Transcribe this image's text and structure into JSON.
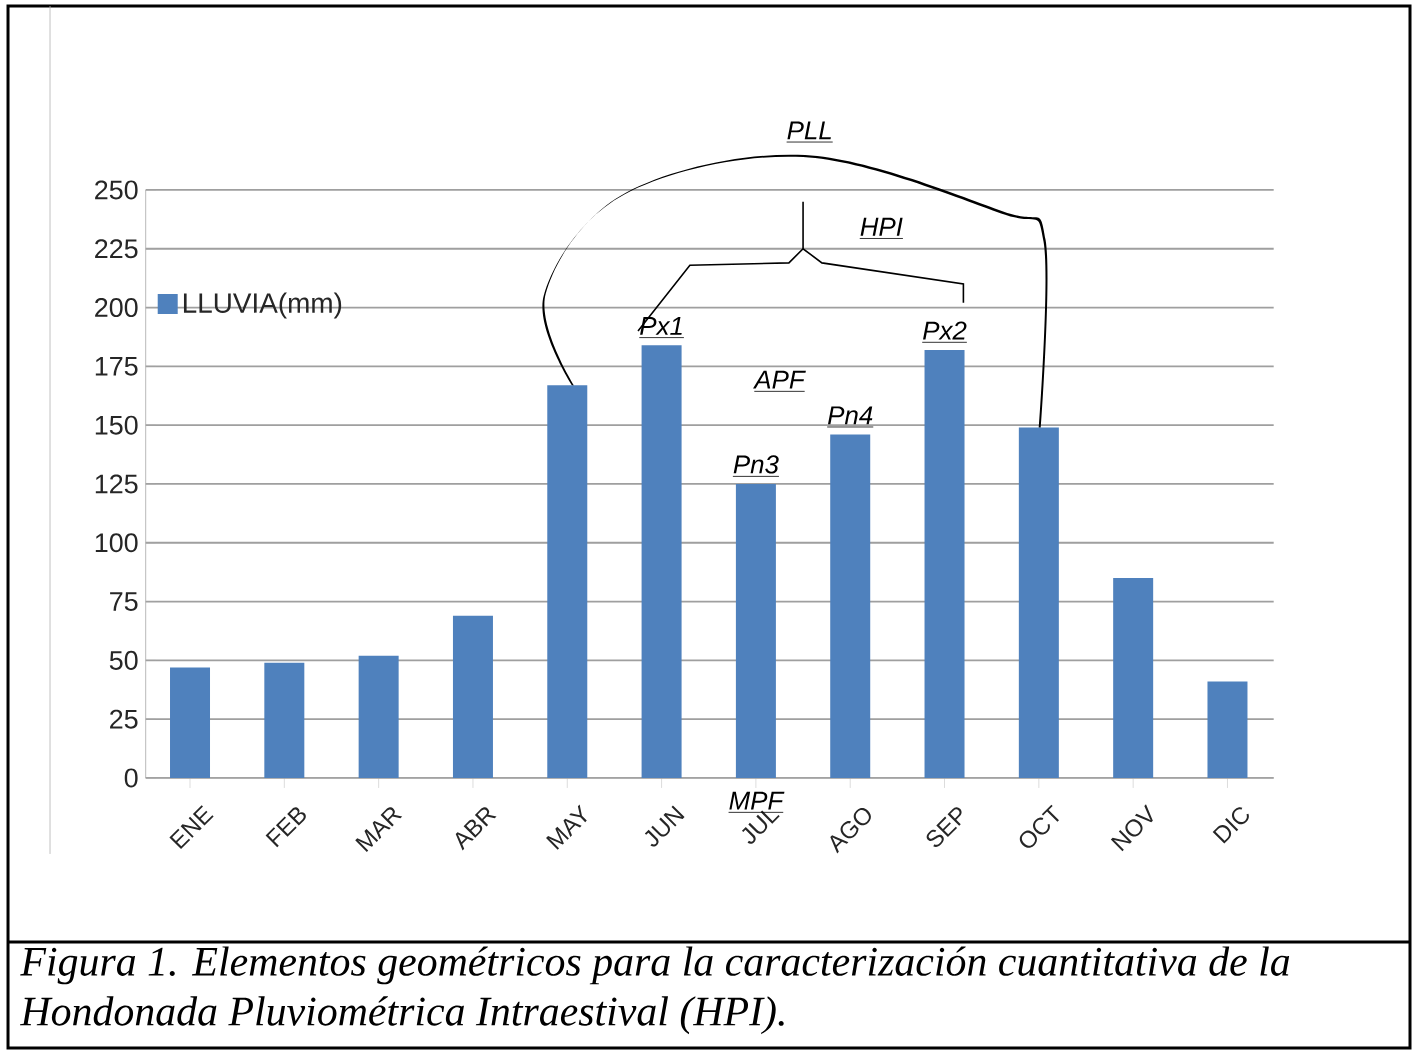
{
  "chart_data": {
    "type": "bar",
    "categories": [
      "ENE",
      "FEB",
      "MAR",
      "ABR",
      "MAY",
      "JUN",
      "JUL",
      "AGO",
      "SEP",
      "OCT",
      "NOV",
      "DIC"
    ],
    "series": [
      {
        "name": "LLUVIA(mm)",
        "color": "#4f81bd",
        "values": [
          47,
          49,
          52,
          69,
          167,
          184,
          125,
          146,
          182,
          149,
          85,
          41
        ]
      }
    ],
    "ylim": [
      0,
      250
    ],
    "yticks": [
      0,
      25,
      50,
      75,
      100,
      125,
      150,
      175,
      200,
      225,
      250
    ],
    "grid": "y",
    "legend": "top left",
    "annotations": [
      {
        "text": "Px1",
        "x": "JUN",
        "y": 184
      },
      {
        "text": "Px2",
        "x": "SEP",
        "y": 182
      },
      {
        "text": "Pn3",
        "x": "JUL",
        "y": 125
      },
      {
        "text": "Pn4",
        "x": "AGO",
        "y": 146
      },
      "PLL",
      "HPI",
      "APF",
      "MPF",
      "Figura 1. Elementos geométricos para la caracterización cuantitativa de la Hondonada Pluviométrica Intraestival (HPI)."
    ]
  }
}
